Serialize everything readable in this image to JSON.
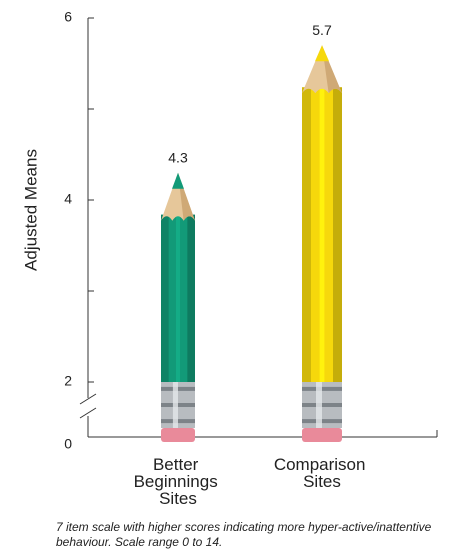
{
  "chart_data": {
    "type": "pencil-bar",
    "y_label": "Adjusted Means",
    "categories": [
      "Better Beginnings Sites",
      "Comparison Sites"
    ],
    "values": [
      4.3,
      5.7
    ],
    "colors": [
      "#129a78",
      "#f6d80c"
    ],
    "ylim": [
      0,
      6
    ],
    "yticks": [
      0,
      2,
      4,
      6
    ],
    "minor_yticks": [
      3,
      5
    ],
    "y_axis_break": [
      0,
      2
    ],
    "note": "7 item scale with higher scores indicating more hyper-active/inattentive behaviour. Scale range 0 to 14."
  }
}
